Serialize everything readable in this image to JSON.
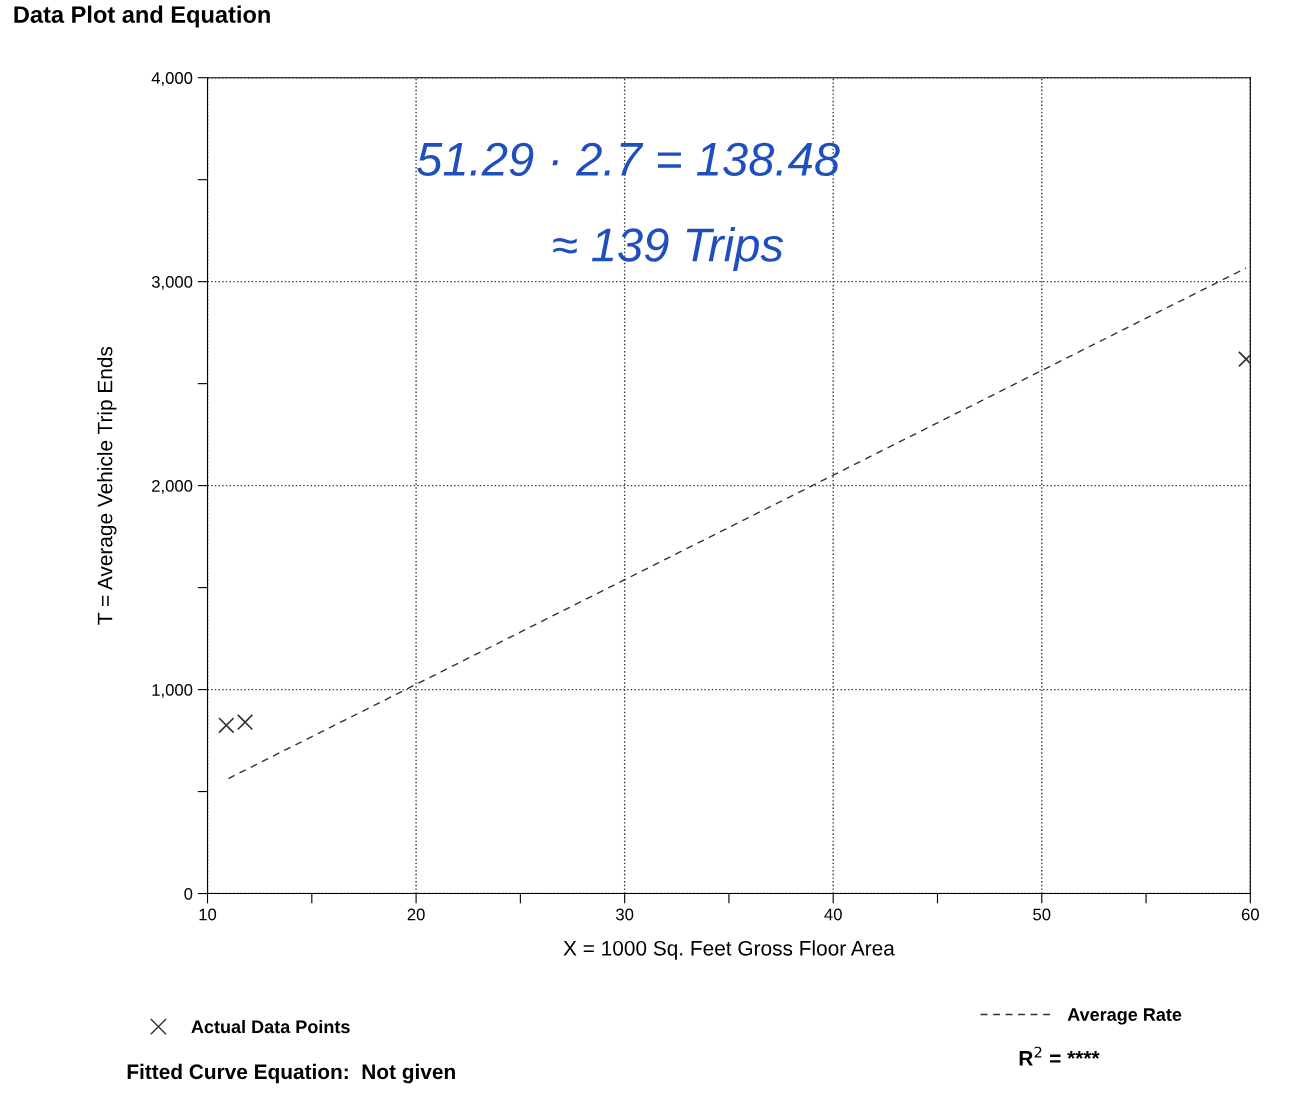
{
  "chart_data": {
    "type": "scatter",
    "title": "Data Plot and Equation",
    "xlabel": "X = 1000 Sq. Feet Gross Floor Area",
    "ylabel": "T = Average Vehicle Trip Ends",
    "series": [
      {
        "name": "Actual Data Points",
        "color": "#333333",
        "marker": "cross",
        "x": [
          10.9,
          11.8,
          59.8
        ],
        "values": [
          825,
          840,
          2620
        ]
      },
      {
        "name": "Average Rate",
        "type": "line",
        "color": "#333333",
        "line_style": "dashed",
        "marker": "none",
        "x": [
          11,
          59.8
        ],
        "values": [
          564,
          3067
        ]
      }
    ],
    "xlim": [
      10,
      60
    ],
    "ylim": [
      0,
      4000
    ],
    "xticks": [
      10,
      {
        "value": 15,
        "label": null
      },
      20,
      {
        "value": 25,
        "label": null
      },
      30,
      {
        "value": 35,
        "label": null
      },
      40,
      {
        "value": 45,
        "label": null
      },
      50,
      {
        "value": 55,
        "label": null
      },
      60
    ],
    "yticks": [
      {
        "value": 0,
        "label": "0"
      },
      {
        "value": 500,
        "label": null
      },
      {
        "value": 1000,
        "label": "1,000"
      },
      {
        "value": 1500,
        "label": null
      },
      {
        "value": 2000,
        "label": "2,000"
      },
      {
        "value": 2500,
        "label": null
      },
      {
        "value": 3000,
        "label": "3,000"
      },
      {
        "value": 3500,
        "label": null
      },
      {
        "value": 4000,
        "label": "4,000"
      }
    ],
    "grid": true,
    "legend": "bottom",
    "annotations": [
      "51.29 · 2.7 = 138.48",
      "≈ 139 Trips",
      "Fitted Curve Equation:  Not given",
      "R$^{2}$ = ****"
    ]
  }
}
